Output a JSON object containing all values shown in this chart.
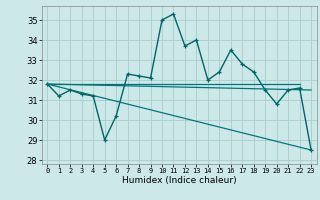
{
  "title": "",
  "xlabel": "Humidex (Indice chaleur)",
  "background_color": "#cce8e8",
  "grid_color": "#aacccc",
  "line_color1": "#006666",
  "line_color2": "#007777",
  "xlim": [
    -0.5,
    23.5
  ],
  "ylim": [
    27.8,
    35.7
  ],
  "yticks": [
    28,
    29,
    30,
    31,
    32,
    33,
    34,
    35
  ],
  "xticks": [
    0,
    1,
    2,
    3,
    4,
    5,
    6,
    7,
    8,
    9,
    10,
    11,
    12,
    13,
    14,
    15,
    16,
    17,
    18,
    19,
    20,
    21,
    22,
    23
  ],
  "series1_x": [
    0,
    1,
    2,
    3,
    4,
    5,
    6,
    7,
    8,
    9,
    10,
    11,
    12,
    13,
    14,
    15,
    16,
    17,
    18,
    19,
    20,
    21,
    22,
    23
  ],
  "series1_y": [
    31.8,
    31.2,
    31.5,
    31.3,
    31.2,
    29.0,
    30.2,
    32.3,
    32.2,
    32.1,
    35.0,
    35.3,
    33.7,
    34.0,
    32.0,
    32.4,
    33.5,
    32.8,
    32.4,
    31.5,
    30.8,
    31.5,
    31.6,
    28.5
  ],
  "line1_x": [
    0,
    23
  ],
  "line1_y": [
    31.8,
    31.5
  ],
  "line2_x": [
    0,
    23
  ],
  "line2_y": [
    31.8,
    28.5
  ],
  "line3_x": [
    0,
    22
  ],
  "line3_y": [
    31.8,
    31.8
  ]
}
